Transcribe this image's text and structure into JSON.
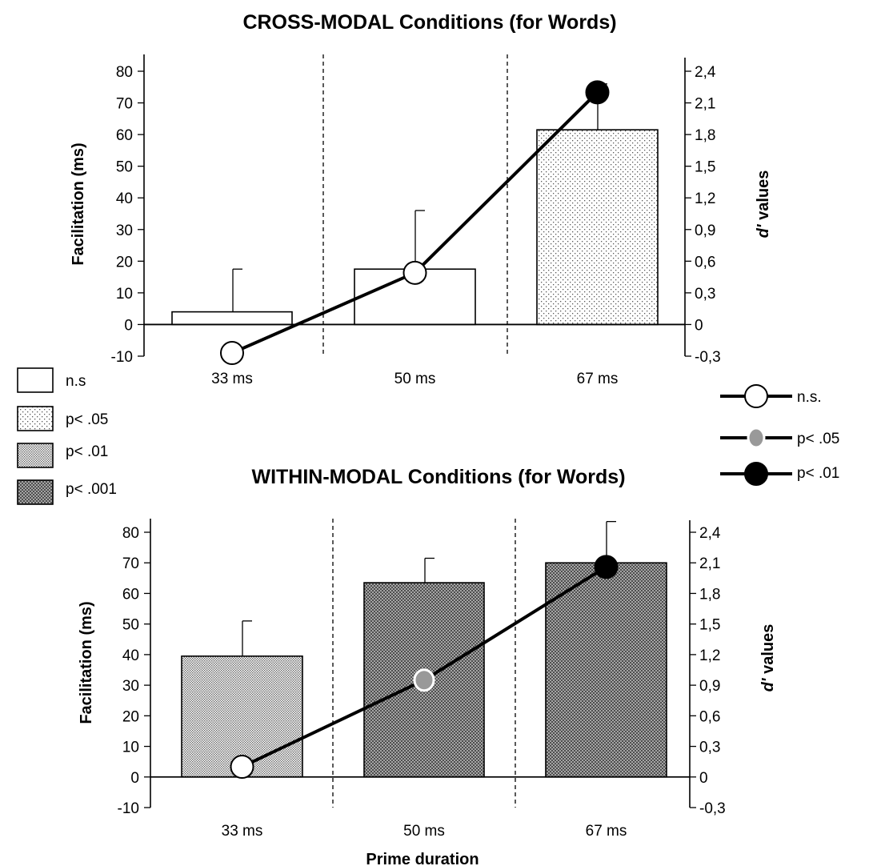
{
  "legends": {
    "bars": [
      {
        "label": "n.s",
        "pattern": "none"
      },
      {
        "label": "p< .05",
        "pattern": "sparse-dots"
      },
      {
        "label": "p< .01",
        "pattern": "dense-dots"
      },
      {
        "label": "p< .001",
        "pattern": "crosshatch"
      }
    ],
    "dprime": [
      {
        "label": "n.s.",
        "marker_color": "#ffffff"
      },
      {
        "label": "p< .05",
        "marker_color": "#999999"
      },
      {
        "label": "p< .01",
        "marker_color": "#000000"
      }
    ]
  },
  "chart_data": [
    {
      "type": "bar",
      "title": "CROSS-MODAL Conditions (for Words)",
      "categories": [
        "33 ms",
        "50 ms",
        "67 ms"
      ],
      "ylabel": "Facilitation (ms)",
      "y2label_italic": "d'",
      "y2label_rest": " values",
      "xlabel": "",
      "ylim": [
        -10,
        80
      ],
      "y2lim": [
        -0.3,
        2.4
      ],
      "yticks": [
        "-10",
        "0",
        "10",
        "20",
        "30",
        "40",
        "50",
        "60",
        "70",
        "80"
      ],
      "y2ticks": [
        "-0,3",
        "0",
        "0,3",
        "0,6",
        "0,9",
        "1,2",
        "1,5",
        "1,8",
        "2,1",
        "2,4"
      ],
      "bars": {
        "values": [
          4,
          17.5,
          61.5
        ],
        "errors": [
          13.5,
          18.5,
          14.5
        ],
        "significance": [
          "n.s",
          "n.s",
          "p< .05"
        ]
      },
      "dprime": {
        "values": [
          -0.27,
          0.49,
          2.2
        ],
        "significance": [
          "n.s.",
          "n.s.",
          "p< .01"
        ]
      }
    },
    {
      "type": "bar",
      "title": "WITHIN-MODAL Conditions (for Words)",
      "categories": [
        "33 ms",
        "50 ms",
        "67 ms"
      ],
      "ylabel": "Facilitation (ms)",
      "y2label_italic": "d'",
      "y2label_rest": " values",
      "xlabel": "Prime duration",
      "ylim": [
        -10,
        80
      ],
      "y2lim": [
        -0.3,
        2.4
      ],
      "yticks": [
        "-10",
        "0",
        "10",
        "20",
        "30",
        "40",
        "50",
        "60",
        "70",
        "80"
      ],
      "y2ticks": [
        "-0,3",
        "0",
        "0,3",
        "0,6",
        "0,9",
        "1,2",
        "1,5",
        "1,8",
        "2,1",
        "2,4"
      ],
      "bars": {
        "values": [
          39.5,
          63.5,
          70
        ],
        "errors": [
          11.5,
          8,
          13.5
        ],
        "significance": [
          "p< .01",
          "p< .001",
          "p< .001"
        ]
      },
      "dprime": {
        "values": [
          0.1,
          0.95,
          2.06
        ],
        "significance": [
          "n.s.",
          "p< .05",
          "p< .01"
        ]
      }
    }
  ]
}
